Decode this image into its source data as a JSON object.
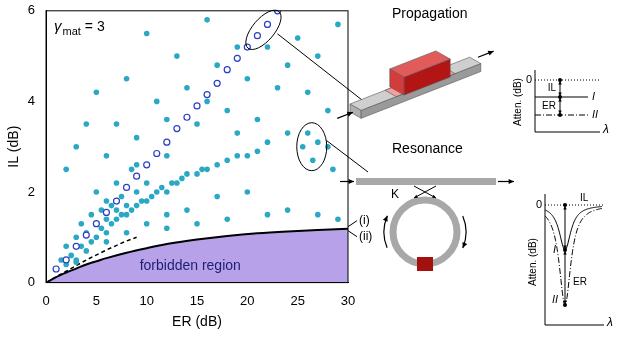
{
  "chart_data": {
    "type": "scatter",
    "x_label": "ER (dB)",
    "y_label": "IL (dB)",
    "xlim": [
      0,
      30
    ],
    "xticks": [
      0,
      5,
      10,
      15,
      20,
      25,
      30
    ],
    "ylim": [
      0,
      6
    ],
    "yticks": [
      0,
      2,
      4,
      6
    ],
    "grid": false,
    "annotations": {
      "gamma": {
        "symbol": "γ",
        "subscript": "mat",
        "text": "= 3"
      },
      "region": "forbidden region"
    },
    "series": [
      {
        "type": "scatter",
        "color": "#2aa8c4",
        "marker": "circle",
        "x": [
          1,
          1.5,
          2,
          2,
          2.5,
          3,
          3,
          3.5,
          3.5,
          4,
          4,
          4.5,
          4.5,
          5,
          5,
          5,
          5.5,
          5.5,
          6,
          6,
          6,
          6.5,
          6.5,
          7,
          7,
          7,
          7.5,
          7.5,
          8,
          8,
          8.5,
          8.5,
          9,
          9,
          9.5,
          10,
          10,
          10.5,
          11,
          11.5,
          12,
          12.5,
          13,
          13.5,
          14,
          15,
          15.5,
          16,
          17,
          18,
          19,
          20,
          21,
          22,
          24,
          25.5,
          26,
          26.5,
          27,
          28,
          28.5,
          3,
          6,
          8,
          10,
          12,
          14,
          17,
          20,
          24,
          27,
          29,
          22,
          18,
          15,
          12,
          2,
          3,
          4,
          5,
          6,
          7,
          8,
          9,
          10,
          11,
          12,
          13,
          14,
          15,
          16,
          17,
          18,
          19,
          20,
          21,
          22,
          23,
          24,
          25,
          26,
          27,
          28,
          29,
          19,
          16,
          12,
          9
        ],
        "values": [
          0.3,
          0.5,
          0.4,
          0.8,
          0.6,
          0.5,
          1,
          0.8,
          1.3,
          0.7,
          1.1,
          0.9,
          1.5,
          1,
          1.3,
          2,
          1.2,
          1.6,
          1.1,
          1.4,
          1.8,
          1.3,
          1.7,
          1.4,
          1.6,
          2.2,
          1.5,
          1.9,
          1.5,
          1.7,
          1.6,
          2.5,
          1.7,
          2,
          1.8,
          1.8,
          2.2,
          1.9,
          2,
          2.1,
          2,
          2.2,
          2.2,
          2.3,
          2.4,
          2.4,
          2.5,
          2.5,
          2.6,
          2.7,
          2.8,
          2.8,
          2.9,
          3.1,
          3.3,
          3,
          3.3,
          2.7,
          3.1,
          3,
          2.5,
          0.45,
          0.9,
          1.1,
          1.3,
          1.5,
          1.6,
          1.9,
          2,
          1.6,
          1.5,
          1.4,
          1.5,
          1.4,
          1.3,
          1.2,
          2.5,
          3,
          3.5,
          4.2,
          2.8,
          3.5,
          4.5,
          3.2,
          5.5,
          4,
          3.6,
          5,
          4.3,
          3.5,
          5.8,
          4.8,
          3.8,
          5.2,
          4.5,
          3.6,
          5.2,
          4.3,
          4.8,
          5.4,
          4.2,
          5,
          3.8,
          5.7,
          3.3,
          4,
          2.8,
          2.6
        ]
      },
      {
        "type": "scatter",
        "color": "#2b3fc4",
        "marker": "open_circle",
        "x": [
          1,
          2,
          3,
          4,
          5,
          6,
          7,
          8,
          9,
          10,
          11,
          12,
          13,
          14,
          15,
          16,
          17,
          18,
          19,
          20,
          21,
          22,
          23
        ],
        "values": [
          0.3,
          0.5,
          0.8,
          1.05,
          1.3,
          1.55,
          1.8,
          2.1,
          2.35,
          2.6,
          2.85,
          3.1,
          3.4,
          3.65,
          3.9,
          4.15,
          4.4,
          4.7,
          4.95,
          5.2,
          5.45,
          5.7,
          6.0
        ]
      },
      {
        "type": "area",
        "color": "#b7a2ea",
        "line_style": "solid",
        "label": "(i)",
        "x": [
          0,
          1,
          2,
          3,
          4,
          5,
          6,
          8,
          10,
          12,
          15,
          18,
          21,
          24,
          27,
          30
        ],
        "values": [
          0,
          0.12,
          0.22,
          0.31,
          0.4,
          0.47,
          0.54,
          0.66,
          0.76,
          0.85,
          0.95,
          1.03,
          1.09,
          1.13,
          1.16,
          1.19
        ]
      },
      {
        "type": "line",
        "color": "#000000",
        "line_style": "dashed",
        "label": "(ii)",
        "x": [
          0,
          2,
          4,
          6,
          8,
          9
        ],
        "values": [
          0,
          0.25,
          0.5,
          0.72,
          0.92,
          1.0
        ]
      }
    ]
  },
  "diagrams": {
    "propagation": {
      "title": "Propagation",
      "plot": {
        "y_label": "Atten. (dB)",
        "x_label": "λ",
        "zero": "0",
        "curves": [
          "I",
          "II"
        ],
        "measures": [
          "IL",
          "ER"
        ]
      }
    },
    "resonance": {
      "title": "Resonance",
      "coupling": "K",
      "plot": {
        "y_label": "Atten. (dB)",
        "x_label": "λ",
        "zero": "0",
        "curves": [
          "I",
          "II"
        ],
        "measures": [
          "IL",
          "ER"
        ]
      }
    }
  }
}
